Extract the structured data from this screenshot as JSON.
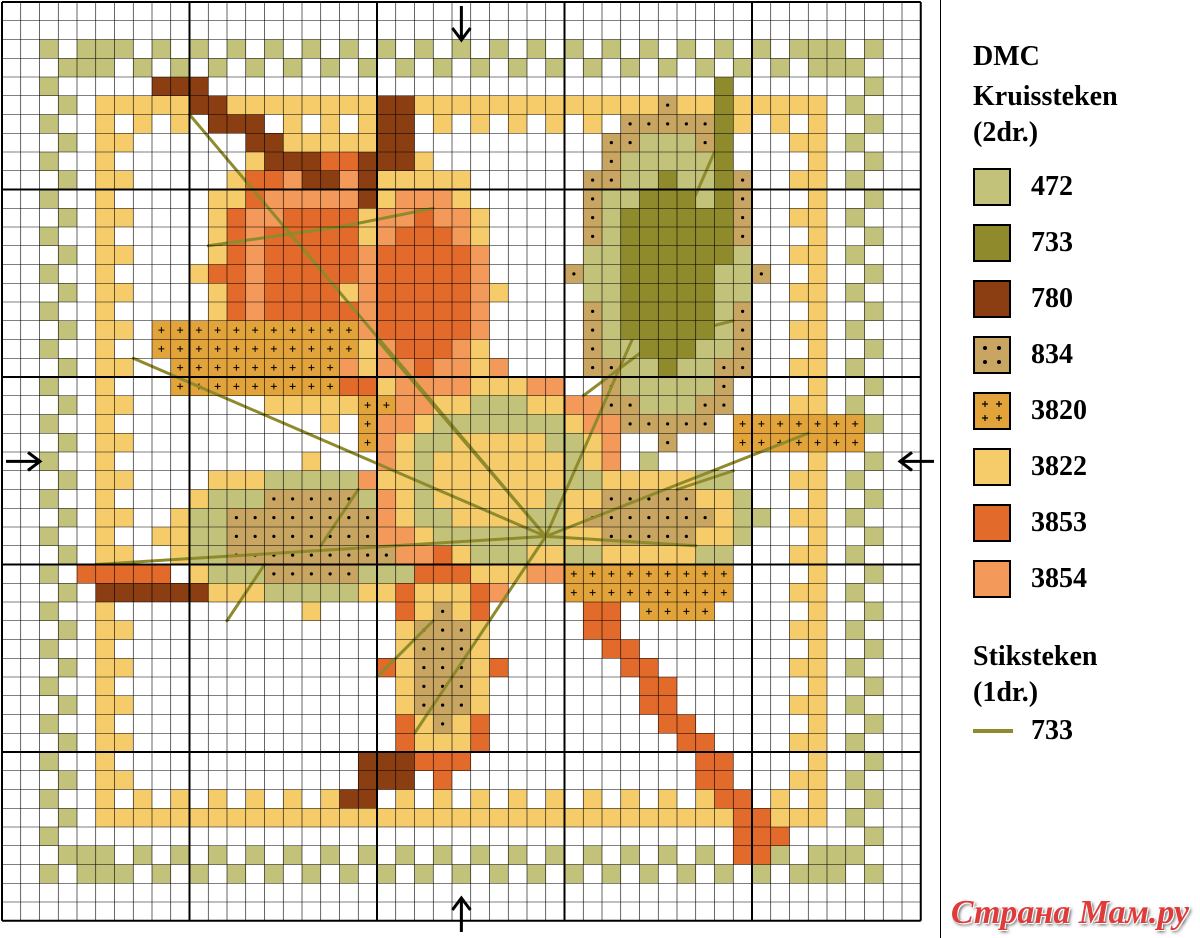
{
  "legend": {
    "title_lines": [
      "DMC",
      "Kruissteken",
      "(2dr.)"
    ],
    "colors": [
      {
        "code": "472",
        "hex": "#c2c27a",
        "symbol": "none"
      },
      {
        "code": "733",
        "hex": "#8f8a2b",
        "symbol": "none"
      },
      {
        "code": "780",
        "hex": "#8a3e12",
        "symbol": "none"
      },
      {
        "code": "834",
        "hex": "#c8a560",
        "symbol": "dot"
      },
      {
        "code": "3820",
        "hex": "#e2a43a",
        "symbol": "plus"
      },
      {
        "code": "3822",
        "hex": "#f6cc6b",
        "symbol": "none"
      },
      {
        "code": "3853",
        "hex": "#e26a2a",
        "symbol": "none"
      },
      {
        "code": "3854",
        "hex": "#f39a5a",
        "symbol": "none"
      }
    ],
    "backstitch_title_lines": [
      "Stiksteken",
      "(1dr.)"
    ],
    "backstitch": {
      "code": "733",
      "hex": "#8f8a2b"
    }
  },
  "watermark": "Страна Мам.ру",
  "center_markers": [
    "top-arrow",
    "bottom-arrow",
    "left-arrow",
    "right-arrow"
  ],
  "grid": {
    "cols": 49,
    "rows": 49,
    "major_every": 10,
    "line_color": "#000000"
  }
}
